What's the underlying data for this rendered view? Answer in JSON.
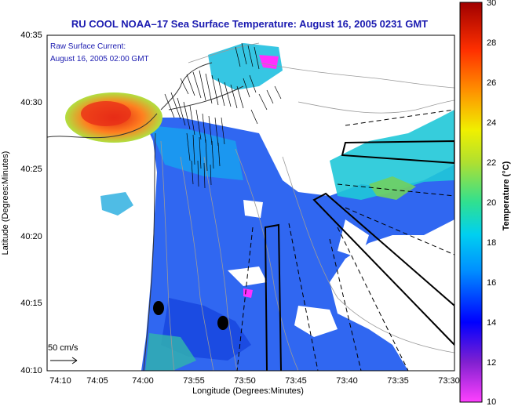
{
  "title": "RU COOL  NOAA–17  Sea Surface Temperature:  August 16, 2005 0231 GMT",
  "annotation": {
    "line1": "Raw Surface Current:",
    "line2": "August 16, 2005 02:00 GMT"
  },
  "scale": {
    "label": "50 cm/s"
  },
  "axes": {
    "xlabel": "Longitude (Degrees:Minutes)",
    "ylabel": "Latitude (Degrees:Minutes)",
    "xticks": [
      "74:10",
      "74:05",
      "74:00",
      "73:55",
      "73:50",
      "73:45",
      "73:40",
      "73:35",
      "73:30"
    ],
    "yticks": [
      "40:35",
      "40:30",
      "40:25",
      "40:20",
      "40:15",
      "40:10"
    ]
  },
  "colorbar": {
    "label": "Temperature (°C)",
    "ticks": [
      "30",
      "28",
      "26",
      "24",
      "22",
      "20",
      "18",
      "16",
      "14",
      "12",
      "10"
    ],
    "min": 10,
    "max": 30
  },
  "colors": {
    "land": "#ffffff",
    "sst_warm": "#e03018",
    "sst_cool": "#2a64ff",
    "title": "#1a1ab0"
  }
}
